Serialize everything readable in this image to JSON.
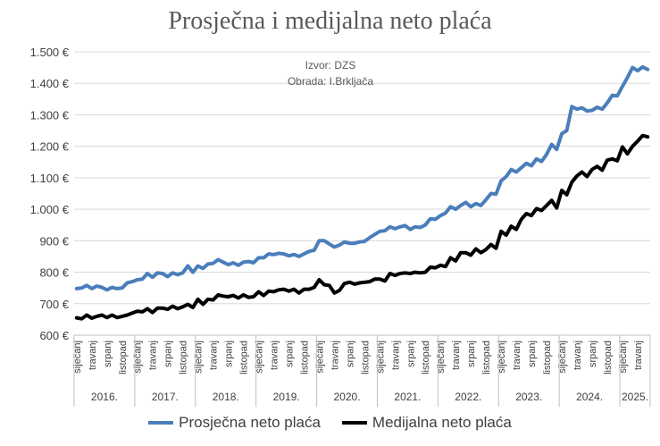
{
  "title": "Prosječna i medijalna neto plaća",
  "annotation": {
    "source": "Izvor: DZS",
    "author": "Obrada: I.Brkljača"
  },
  "chart_data": {
    "type": "line",
    "title": "Prosječna i medijalna neto plaća",
    "ylim": [
      600,
      1500
    ],
    "y_ticks": [
      "600 €",
      "700 €",
      "800 €",
      "900 €",
      "1.000 €",
      "1.100 €",
      "1.200 €",
      "1.300 €",
      "1.400 €",
      "1.500 €"
    ],
    "grid": true,
    "legend_position": "bottom",
    "month_labels": [
      "siječanj",
      "travanj",
      "srpanj",
      "listopad"
    ],
    "years": [
      "2016.",
      "2017.",
      "2018.",
      "2019.",
      "2020.",
      "2021.",
      "2022.",
      "2023.",
      "2024.",
      "2025."
    ],
    "series": [
      {
        "name": "Prosječna neto plaća",
        "color": "#4a7ebb",
        "values": [
          748,
          750,
          758,
          748,
          756,
          752,
          744,
          752,
          748,
          750,
          766,
          770,
          776,
          778,
          796,
          784,
          798,
          796,
          786,
          798,
          792,
          798,
          820,
          800,
          820,
          812,
          826,
          828,
          840,
          832,
          824,
          830,
          822,
          832,
          834,
          830,
          846,
          846,
          858,
          856,
          860,
          858,
          852,
          856,
          850,
          858,
          866,
          870,
          900,
          900,
          890,
          880,
          886,
          896,
          892,
          892,
          896,
          898,
          910,
          920,
          930,
          932,
          944,
          938,
          944,
          948,
          936,
          944,
          942,
          950,
          970,
          968,
          980,
          988,
          1008,
          1000,
          1012,
          1022,
          1008,
          1018,
          1012,
          1030,
          1050,
          1048,
          1090,
          1104,
          1126,
          1118,
          1132,
          1146,
          1138,
          1160,
          1152,
          1174,
          1206,
          1190,
          1240,
          1250,
          1326,
          1318,
          1322,
          1312,
          1314,
          1324,
          1318,
          1338,
          1362,
          1360,
          1390,
          1418,
          1450,
          1440,
          1452,
          1444
        ]
      },
      {
        "name": "Medijalna neto plaća",
        "color": "#000000",
        "values": [
          655,
          652,
          664,
          654,
          660,
          664,
          656,
          664,
          656,
          660,
          664,
          670,
          676,
          674,
          684,
          672,
          686,
          686,
          682,
          692,
          684,
          690,
          698,
          688,
          714,
          698,
          714,
          712,
          728,
          724,
          722,
          726,
          718,
          728,
          720,
          722,
          738,
          726,
          740,
          738,
          744,
          746,
          740,
          746,
          734,
          746,
          746,
          752,
          776,
          760,
          758,
          734,
          742,
          764,
          768,
          762,
          766,
          768,
          770,
          778,
          778,
          772,
          796,
          790,
          796,
          798,
          796,
          800,
          798,
          800,
          816,
          814,
          822,
          818,
          846,
          836,
          862,
          862,
          854,
          874,
          862,
          872,
          888,
          876,
          930,
          918,
          946,
          936,
          968,
          986,
          980,
          1002,
          996,
          1012,
          1028,
          1004,
          1060,
          1046,
          1086,
          1106,
          1118,
          1104,
          1126,
          1136,
          1124,
          1156,
          1160,
          1154,
          1198,
          1176,
          1200,
          1216,
          1234,
          1230
        ]
      }
    ]
  }
}
